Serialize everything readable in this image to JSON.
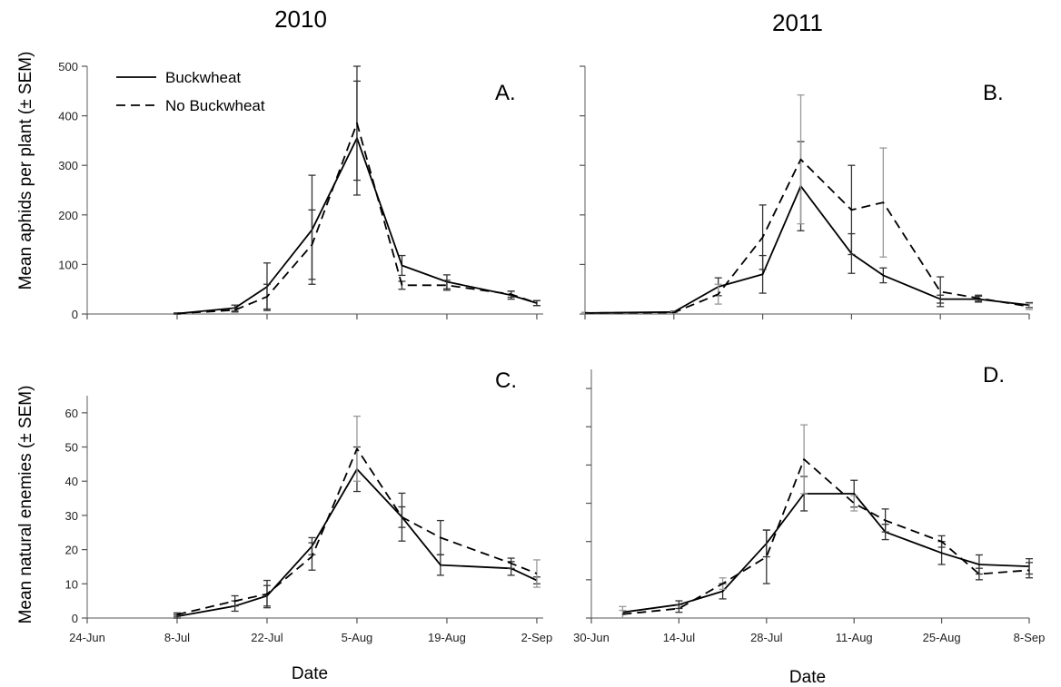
{
  "figure": {
    "year_titles": [
      "2010",
      "2011"
    ],
    "ylabel_top": "Mean aphids per plant (± SEM)",
    "ylabel_bottom": "Mean natural enemies (± SEM)",
    "xlabel": "Date",
    "legend": {
      "solid": "Buckwheat",
      "dashed": "No Buckwheat"
    },
    "colors": {
      "line": "#000000",
      "errorbar_dark": "#333333",
      "errorbar_light": "#999999"
    }
  },
  "chart_data": [
    {
      "panel": "A.",
      "type": "line",
      "title": "2010",
      "ylabel": "Mean aphids per plant (± SEM)",
      "xlabel": "",
      "xticks": [
        "24-Jun",
        "8-Jul",
        "22-Jul",
        "5-Aug",
        "19-Aug",
        "2-Sep"
      ],
      "xlim": [
        "24-Jun",
        "3-Sep"
      ],
      "yticks": [
        0,
        100,
        200,
        300,
        400,
        500
      ],
      "ytick_labels": [
        "0",
        "100",
        "200",
        "300",
        "400",
        "500"
      ],
      "ylim": [
        0,
        500
      ],
      "legend_position": "top-left",
      "show_xtick_labels": false,
      "series": [
        {
          "name": "Buckwheat",
          "style": "solid",
          "x": [
            "8-Jul",
            "17-Jul",
            "22-Jul",
            "29-Jul",
            "5-Aug",
            "12-Aug",
            "19-Aug",
            "29-Aug",
            "2-Sep"
          ],
          "y": [
            1,
            12,
            55,
            170,
            355,
            98,
            65,
            38,
            22
          ],
          "err": [
            1,
            6,
            48,
            110,
            115,
            20,
            14,
            8,
            5
          ],
          "err_shade": [
            "dark",
            "dark",
            "dark",
            "dark",
            "dark",
            "dark",
            "dark",
            "dark",
            "dark"
          ]
        },
        {
          "name": "No Buckwheat",
          "style": "dashed",
          "x": [
            "8-Jul",
            "17-Jul",
            "22-Jul",
            "29-Jul",
            "5-Aug",
            "12-Aug",
            "19-Aug",
            "29-Aug",
            "2-Sep"
          ],
          "y": [
            1,
            8,
            35,
            140,
            385,
            58,
            58,
            40,
            22
          ],
          "err": [
            1,
            4,
            25,
            70,
            115,
            8,
            10,
            6,
            5
          ],
          "err_shade": [
            "dark",
            "dark",
            "dark",
            "dark",
            "dark",
            "dark",
            "dark",
            "dark",
            "dark"
          ]
        }
      ]
    },
    {
      "panel": "B.",
      "type": "line",
      "title": "2011",
      "ylabel": "",
      "xlabel": "",
      "xticks": [
        "30-Jun",
        "14-Jul",
        "28-Jul",
        "11-Aug",
        "25-Aug",
        "8-Sep"
      ],
      "xlim": [
        "30-Jun",
        "8-Sep"
      ],
      "yticks": [
        0,
        100,
        200,
        300,
        400,
        500
      ],
      "ytick_labels": [
        "",
        "",
        "",
        "",
        "",
        ""
      ],
      "ylim": [
        0,
        500
      ],
      "show_xtick_labels": false,
      "series": [
        {
          "name": "Buckwheat",
          "style": "solid",
          "x": [
            "30-Jun",
            "14-Jul",
            "21-Jul",
            "28-Jul",
            "3-Aug",
            "11-Aug",
            "16-Aug",
            "25-Aug",
            "31-Aug",
            "8-Sep"
          ],
          "y": [
            2,
            4,
            55,
            80,
            258,
            122,
            78,
            30,
            30,
            18
          ],
          "err": [
            1,
            2,
            18,
            38,
            90,
            40,
            15,
            8,
            6,
            5
          ],
          "err_shade": [
            "dark",
            "dark",
            "dark",
            "dark",
            "dark",
            "dark",
            "dark",
            "dark",
            "dark",
            "dark"
          ]
        },
        {
          "name": "No Buckwheat",
          "style": "dashed",
          "x": [
            "30-Jun",
            "14-Jul",
            "21-Jul",
            "28-Jul",
            "3-Aug",
            "11-Aug",
            "16-Aug",
            "25-Aug",
            "31-Aug",
            "8-Sep"
          ],
          "y": [
            2,
            3,
            40,
            155,
            312,
            210,
            225,
            45,
            32,
            15
          ],
          "err": [
            1,
            2,
            20,
            65,
            130,
            90,
            110,
            30,
            6,
            6
          ],
          "err_shade": [
            "light",
            "light",
            "light",
            "dark",
            "light",
            "dark",
            "light",
            "dark",
            "dark",
            "light"
          ]
        }
      ]
    },
    {
      "panel": "C.",
      "type": "line",
      "title": "",
      "ylabel": "Mean natural enemies (± SEM)",
      "xlabel": "Date",
      "xticks": [
        "24-Jun",
        "8-Jul",
        "22-Jul",
        "5-Aug",
        "19-Aug",
        "2-Sep"
      ],
      "xlim": [
        "24-Jun",
        "3-Sep"
      ],
      "yticks": [
        0,
        10,
        20,
        30,
        40,
        50,
        60
      ],
      "ytick_labels": [
        "0",
        "10",
        "20",
        "30",
        "40",
        "50",
        "60"
      ],
      "ylim": [
        0,
        65
      ],
      "show_xtick_labels": true,
      "series": [
        {
          "name": "Buckwheat",
          "style": "solid",
          "x": [
            "8-Jul",
            "17-Jul",
            "22-Jul",
            "29-Jul",
            "5-Aug",
            "12-Aug",
            "18-Aug",
            "29-Aug",
            "2-Sep"
          ],
          "y": [
            0.5,
            3.5,
            6.5,
            21,
            43.5,
            29.5,
            15.5,
            14.5,
            11
          ],
          "err": [
            0.5,
            1.5,
            3,
            2.5,
            6.5,
            7,
            3,
            2,
            1
          ],
          "err_shade": [
            "dark",
            "dark",
            "dark",
            "dark",
            "dark",
            "dark",
            "dark",
            "dark",
            "dark"
          ]
        },
        {
          "name": "No Buckwheat",
          "style": "dashed",
          "x": [
            "8-Jul",
            "17-Jul",
            "22-Jul",
            "29-Jul",
            "5-Aug",
            "12-Aug",
            "18-Aug",
            "29-Aug",
            "2-Sep"
          ],
          "y": [
            1,
            5,
            7,
            18,
            49.5,
            29.5,
            23.5,
            16,
            13
          ],
          "err": [
            0.5,
            1.5,
            4,
            4,
            9.5,
            3,
            5,
            1.5,
            4
          ],
          "err_shade": [
            "dark",
            "dark",
            "dark",
            "dark",
            "light",
            "dark",
            "dark",
            "dark",
            "light"
          ]
        }
      ]
    },
    {
      "panel": "D.",
      "type": "line",
      "title": "",
      "ylabel": "",
      "xlabel": "Date",
      "xticks": [
        "30-Jun",
        "14-Jul",
        "28-Jul",
        "11-Aug",
        "25-Aug",
        "8-Sep"
      ],
      "xlim": [
        "30-Jun",
        "8-Sep"
      ],
      "yticks": [
        0,
        10,
        20,
        30,
        40,
        50,
        60
      ],
      "ytick_labels": [
        "",
        "",
        "",
        "",
        "",
        "",
        ""
      ],
      "ylim": [
        0,
        65
      ],
      "show_xtick_labels": true,
      "series": [
        {
          "name": "Buckwheat",
          "style": "solid",
          "x": [
            "5-Jul",
            "14-Jul",
            "21-Jul",
            "28-Jul",
            "3-Aug",
            "11-Aug",
            "16-Aug",
            "25-Aug",
            "31-Aug",
            "8-Sep"
          ],
          "y": [
            1.5,
            3.5,
            7,
            19.5,
            32.5,
            32.5,
            22.5,
            17,
            14,
            13.5
          ],
          "err": [
            1.5,
            1,
            2,
            3.5,
            4.5,
            3.5,
            2,
            3,
            2.5,
            2
          ],
          "err_shade": [
            "light",
            "dark",
            "dark",
            "dark",
            "dark",
            "dark",
            "dark",
            "dark",
            "dark",
            "dark"
          ]
        },
        {
          "name": "No Buckwheat",
          "style": "dashed",
          "x": [
            "5-Jul",
            "14-Jul",
            "21-Jul",
            "28-Jul",
            "3-Aug",
            "11-Aug",
            "16-Aug",
            "25-Aug",
            "31-Aug",
            "8-Sep"
          ],
          "y": [
            1,
            2.5,
            9,
            16,
            41.5,
            30,
            25.5,
            20,
            11.5,
            12.5
          ],
          "err": [
            1,
            1,
            1.5,
            7,
            9,
            2,
            3,
            1.5,
            1.5,
            2
          ],
          "err_shade": [
            "light",
            "dark",
            "light",
            "dark",
            "light",
            "light",
            "dark",
            "dark",
            "dark",
            "dark"
          ]
        }
      ]
    }
  ]
}
